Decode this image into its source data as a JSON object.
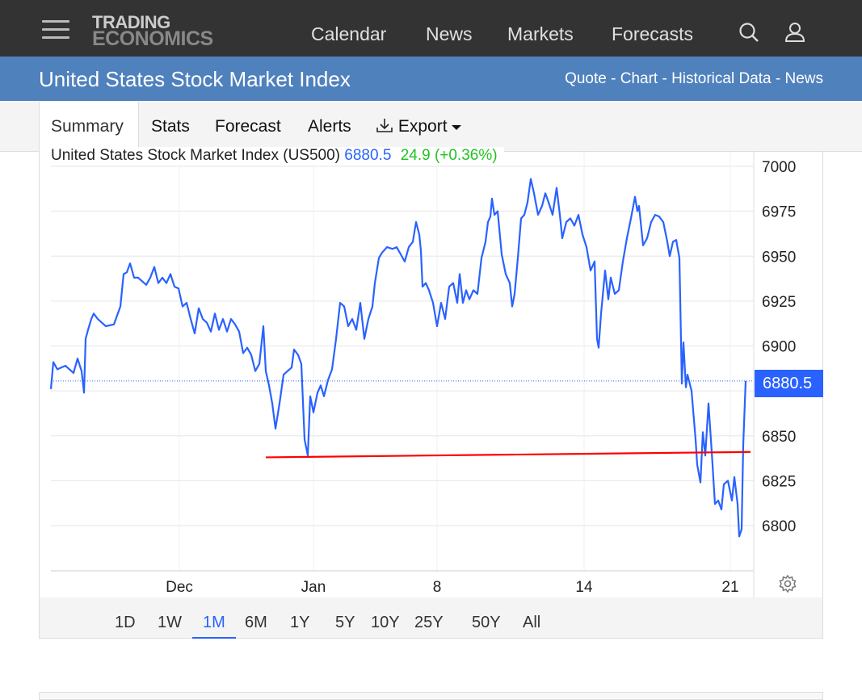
{
  "header": {
    "logo_line1": "TRADING",
    "logo_line2": "ECONOMICS",
    "nav": [
      "Calendar",
      "News",
      "Markets",
      "Forecasts"
    ]
  },
  "page": {
    "title": "United States Stock Market Index",
    "links": "Quote - Chart - Historical Data - News"
  },
  "tabs": [
    "Summary",
    "Stats",
    "Forecast",
    "Alerts",
    "Export"
  ],
  "ranges": [
    "1D",
    "1W",
    "1M",
    "6M",
    "1Y",
    "5Y",
    "10Y",
    "25Y",
    "50Y",
    "All"
  ],
  "selected_range": "1M",
  "colors": {
    "line": "#2962ff",
    "trend": "#ff0000",
    "change": "#22c322",
    "topbar": "#333333",
    "bluebar": "#4f81bd"
  },
  "chart_data": {
    "type": "line",
    "title": "United States Stock Market Index (US500)",
    "last_value": "6880.5",
    "change": "24.9 (+0.36%)",
    "price_tag": "6880.5",
    "xlim": [
      0,
      87
    ],
    "ylim": [
      6775,
      7005
    ],
    "yticks": [
      6800,
      6825,
      6850,
      6875,
      6900,
      6925,
      6950,
      6975,
      7000
    ],
    "ytick_labels": [
      "6800",
      "6825",
      "6850",
      "",
      "6900",
      "6925",
      "6950",
      "6975",
      "7000"
    ],
    "xticks": [
      {
        "t": 15.9,
        "label": "Dec"
      },
      {
        "t": 32.5,
        "label": "Jan"
      },
      {
        "t": 47.8,
        "label": "8"
      },
      {
        "t": 66.0,
        "label": "14"
      },
      {
        "t": 84.1,
        "label": "21"
      }
    ],
    "series": [
      {
        "name": "US500",
        "points": [
          [
            0,
            6876
          ],
          [
            0.3,
            6891
          ],
          [
            0.8,
            6887
          ],
          [
            1.8,
            6889
          ],
          [
            2.8,
            6885
          ],
          [
            3.3,
            6893
          ],
          [
            3.8,
            6886
          ],
          [
            4.1,
            6874
          ],
          [
            4.3,
            6904
          ],
          [
            4.6,
            6909
          ],
          [
            5,
            6915
          ],
          [
            5.3,
            6918
          ],
          [
            5.8,
            6915
          ],
          [
            6.3,
            6913
          ],
          [
            6.8,
            6911
          ],
          [
            7.8,
            6912
          ],
          [
            8.6,
            6922
          ],
          [
            9,
            6940
          ],
          [
            9.4,
            6941
          ],
          [
            9.8,
            6946
          ],
          [
            10.3,
            6938
          ],
          [
            10.8,
            6938
          ],
          [
            11.8,
            6934
          ],
          [
            12.3,
            6938
          ],
          [
            12.8,
            6944
          ],
          [
            13.3,
            6935
          ],
          [
            13.8,
            6938
          ],
          [
            14.3,
            6935
          ],
          [
            14.8,
            6940
          ],
          [
            15.3,
            6933
          ],
          [
            15.8,
            6932
          ],
          [
            16.3,
            6922
          ],
          [
            16.8,
            6924
          ],
          [
            17.3,
            6915
          ],
          [
            17.8,
            6907
          ],
          [
            18.3,
            6921
          ],
          [
            18.8,
            6915
          ],
          [
            19.3,
            6913
          ],
          [
            19.8,
            6908
          ],
          [
            20.3,
            6918
          ],
          [
            20.8,
            6909
          ],
          [
            21.3,
            6915
          ],
          [
            21.8,
            6908
          ],
          [
            22.3,
            6915
          ],
          [
            22.8,
            6912
          ],
          [
            23.3,
            6908
          ],
          [
            23.8,
            6896
          ],
          [
            24.3,
            6899
          ],
          [
            24.8,
            6895
          ],
          [
            25.3,
            6886
          ],
          [
            25.8,
            6890
          ],
          [
            26.3,
            6911
          ],
          [
            26.6,
            6886
          ],
          [
            27,
            6878
          ],
          [
            27.4,
            6868
          ],
          [
            27.8,
            6854
          ],
          [
            28.3,
            6868
          ],
          [
            28.8,
            6884
          ],
          [
            29.3,
            6886
          ],
          [
            29.8,
            6888
          ],
          [
            30.1,
            6898
          ],
          [
            30.6,
            6895
          ],
          [
            31,
            6890
          ],
          [
            31.4,
            6848
          ],
          [
            31.8,
            6839
          ],
          [
            32.1,
            6872
          ],
          [
            32.5,
            6863
          ],
          [
            33,
            6874
          ],
          [
            33.4,
            6878
          ],
          [
            33.8,
            6872
          ],
          [
            34.3,
            6881
          ],
          [
            34.8,
            6887
          ],
          [
            35.3,
            6904
          ],
          [
            35.8,
            6924
          ],
          [
            36.3,
            6922
          ],
          [
            36.8,
            6911
          ],
          [
            37.3,
            6915
          ],
          [
            37.8,
            6909
          ],
          [
            38.3,
            6924
          ],
          [
            38.8,
            6904
          ],
          [
            39.3,
            6915
          ],
          [
            39.8,
            6922
          ],
          [
            40.1,
            6935
          ],
          [
            40.6,
            6949
          ],
          [
            41,
            6952
          ],
          [
            41.6,
            6955
          ],
          [
            42.3,
            6954
          ],
          [
            42.8,
            6955
          ],
          [
            43.3,
            6951
          ],
          [
            43.8,
            6947
          ],
          [
            44.3,
            6955
          ],
          [
            44.8,
            6958
          ],
          [
            45.2,
            6969
          ],
          [
            45.6,
            6962
          ],
          [
            45.8,
            6953
          ],
          [
            46,
            6933
          ],
          [
            46.4,
            6935
          ],
          [
            46.8,
            6931
          ],
          [
            47.3,
            6924
          ],
          [
            47.8,
            6911
          ],
          [
            48.3,
            6924
          ],
          [
            48.8,
            6915
          ],
          [
            49.3,
            6933
          ],
          [
            49.8,
            6935
          ],
          [
            50.3,
            6924
          ],
          [
            50.6,
            6940
          ],
          [
            51,
            6924
          ],
          [
            51.4,
            6931
          ],
          [
            51.8,
            6926
          ],
          [
            52.3,
            6931
          ],
          [
            52.8,
            6929
          ],
          [
            53.3,
            6949
          ],
          [
            53.8,
            6958
          ],
          [
            54.1,
            6969
          ],
          [
            54.4,
            6972
          ],
          [
            54.6,
            6982
          ],
          [
            54.9,
            6973
          ],
          [
            55.3,
            6975
          ],
          [
            55.8,
            6951
          ],
          [
            56.3,
            6940
          ],
          [
            56.8,
            6935
          ],
          [
            57.1,
            6922
          ],
          [
            57.4,
            6929
          ],
          [
            57.8,
            6949
          ],
          [
            58.2,
            6971
          ],
          [
            58.6,
            6973
          ],
          [
            59,
            6980
          ],
          [
            59.4,
            6993
          ],
          [
            59.8,
            6985
          ],
          [
            60.3,
            6973
          ],
          [
            60.8,
            6978
          ],
          [
            61.2,
            6985
          ],
          [
            61.6,
            6980
          ],
          [
            62.1,
            6973
          ],
          [
            62.6,
            6988
          ],
          [
            63,
            6973
          ],
          [
            63.3,
            6960
          ],
          [
            63.8,
            6969
          ],
          [
            64.3,
            6971
          ],
          [
            64.8,
            6967
          ],
          [
            65.3,
            6973
          ],
          [
            65.8,
            6962
          ],
          [
            66.3,
            6955
          ],
          [
            66.8,
            6942
          ],
          [
            67.3,
            6947
          ],
          [
            67.6,
            6904
          ],
          [
            67.8,
            6899
          ],
          [
            68.1,
            6918
          ],
          [
            68.6,
            6942
          ],
          [
            69,
            6926
          ],
          [
            69.3,
            6938
          ],
          [
            69.8,
            6929
          ],
          [
            70.3,
            6931
          ],
          [
            70.8,
            6947
          ],
          [
            71.3,
            6960
          ],
          [
            71.8,
            6971
          ],
          [
            72.3,
            6983
          ],
          [
            72.6,
            6975
          ],
          [
            72.8,
            6978
          ],
          [
            73.3,
            6956
          ],
          [
            73.8,
            6960
          ],
          [
            74.3,
            6969
          ],
          [
            74.8,
            6973
          ],
          [
            75.3,
            6972
          ],
          [
            75.8,
            6969
          ],
          [
            76.3,
            6958
          ],
          [
            76.6,
            6950
          ],
          [
            77,
            6958
          ],
          [
            77.4,
            6959
          ],
          [
            77.8,
            6949
          ],
          [
            78.1,
            6879
          ],
          [
            78.3,
            6902
          ],
          [
            78.6,
            6877
          ],
          [
            78.8,
            6884
          ],
          [
            79.3,
            6875
          ],
          [
            79.8,
            6848
          ],
          [
            80,
            6834
          ],
          [
            80.4,
            6824
          ],
          [
            80.7,
            6852
          ],
          [
            81,
            6839
          ],
          [
            81.4,
            6868
          ],
          [
            81.8,
            6841
          ],
          [
            82.2,
            6812
          ],
          [
            82.6,
            6814
          ],
          [
            83,
            6809
          ],
          [
            83.3,
            6823
          ],
          [
            83.8,
            6825
          ],
          [
            84.3,
            6814
          ],
          [
            84.6,
            6827
          ],
          [
            85,
            6812
          ],
          [
            85.2,
            6794
          ],
          [
            85.5,
            6798
          ],
          [
            85.7,
            6845
          ],
          [
            86,
            6880.5
          ]
        ]
      }
    ],
    "trendline": [
      [
        26.6,
        6838
      ],
      [
        86.6,
        6841
      ]
    ],
    "reference_line": 6880.5
  }
}
